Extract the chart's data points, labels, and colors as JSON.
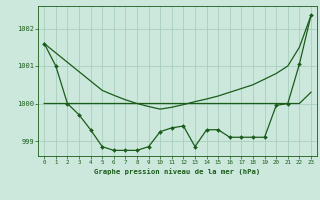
{
  "title": "Graphe pression niveau de la mer (hPa)",
  "background_color": "#cce8dc",
  "grid_color": "#aacfbe",
  "line_color": "#1a5c1a",
  "xlim": [
    -0.5,
    23.5
  ],
  "ylim": [
    998.6,
    1002.6
  ],
  "yticks": [
    999,
    1000,
    1001,
    1002
  ],
  "xticks": [
    0,
    1,
    2,
    3,
    4,
    5,
    6,
    7,
    8,
    9,
    10,
    11,
    12,
    13,
    14,
    15,
    16,
    17,
    18,
    19,
    20,
    21,
    22,
    23
  ],
  "series1_x": [
    0,
    1,
    2,
    3,
    4,
    5,
    6,
    7,
    8,
    9,
    10,
    11,
    12,
    13,
    14,
    15,
    16,
    17,
    18,
    19,
    20,
    21,
    22,
    23
  ],
  "series1_y": [
    1001.6,
    1001.0,
    1000.0,
    999.7,
    999.3,
    998.85,
    998.75,
    998.75,
    998.75,
    998.85,
    999.25,
    999.35,
    999.4,
    998.85,
    999.3,
    999.3,
    999.1,
    999.1,
    999.1,
    999.1,
    999.95,
    1000.0,
    1001.05,
    1002.35
  ],
  "series2_x": [
    0,
    1,
    2,
    3,
    4,
    5,
    6,
    7,
    8,
    9,
    10,
    11,
    12,
    13,
    14,
    15,
    16,
    17,
    18,
    19,
    20,
    21,
    22,
    23
  ],
  "series2_y": [
    1000.0,
    1000.0,
    1000.0,
    1000.0,
    1000.0,
    1000.0,
    1000.0,
    1000.0,
    1000.0,
    1000.0,
    1000.0,
    1000.0,
    1000.0,
    1000.0,
    1000.0,
    1000.0,
    1000.0,
    1000.0,
    1000.0,
    1000.0,
    1000.0,
    1000.0,
    1000.0,
    1000.3
  ],
  "series3_x": [
    0,
    1,
    2,
    3,
    4,
    5,
    6,
    7,
    8,
    9,
    10,
    11,
    12,
    13,
    14,
    15,
    16,
    17,
    18,
    19,
    20,
    21,
    22,
    23
  ],
  "series3_y": [
    1001.6,
    1001.35,
    1001.1,
    1000.85,
    1000.6,
    1000.35,
    1000.22,
    1000.1,
    1000.0,
    999.92,
    999.85,
    999.9,
    999.97,
    1000.05,
    1000.12,
    1000.2,
    1000.3,
    1000.4,
    1000.5,
    1000.65,
    1000.8,
    1001.0,
    1001.5,
    1002.35
  ]
}
